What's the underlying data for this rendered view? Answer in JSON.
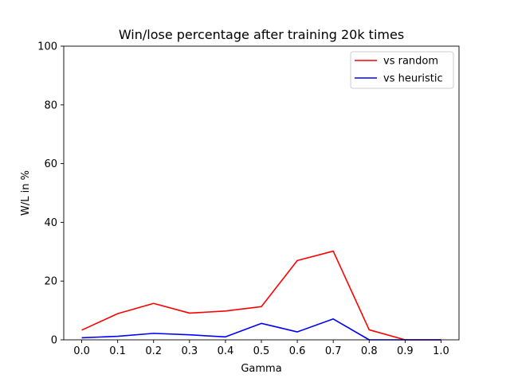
{
  "chart_data": {
    "type": "line",
    "title": "Win/lose percentage after training 20k times",
    "xlabel": "Gamma",
    "ylabel": "W/L in %",
    "x": [
      0.0,
      0.1,
      0.2,
      0.3,
      0.4,
      0.5,
      0.6,
      0.7,
      0.8,
      0.9,
      1.0
    ],
    "x_tick_labels": [
      "0.0",
      "0.1",
      "0.2",
      "0.3",
      "0.4",
      "0.5",
      "0.6",
      "0.7",
      "0.8",
      "0.9",
      "1.0"
    ],
    "y_ticks": [
      0,
      20,
      40,
      60,
      80,
      100
    ],
    "y_tick_labels": [
      "0",
      "20",
      "40",
      "60",
      "80",
      "100"
    ],
    "xlim": [
      -0.05,
      1.05
    ],
    "ylim": [
      0,
      100
    ],
    "grid": false,
    "legend_position": "top-right",
    "series": [
      {
        "name": "vs random",
        "color": "#ff0000",
        "values": [
          3.3,
          8.9,
          12.4,
          9.1,
          9.8,
          11.3,
          27.0,
          30.2,
          3.4,
          0.0,
          0.0
        ]
      },
      {
        "name": "vs heuristic",
        "color": "#0000ff",
        "values": [
          0.7,
          1.2,
          2.2,
          1.7,
          1.0,
          5.6,
          2.7,
          7.1,
          0.0,
          0.0,
          0.0
        ]
      }
    ]
  }
}
